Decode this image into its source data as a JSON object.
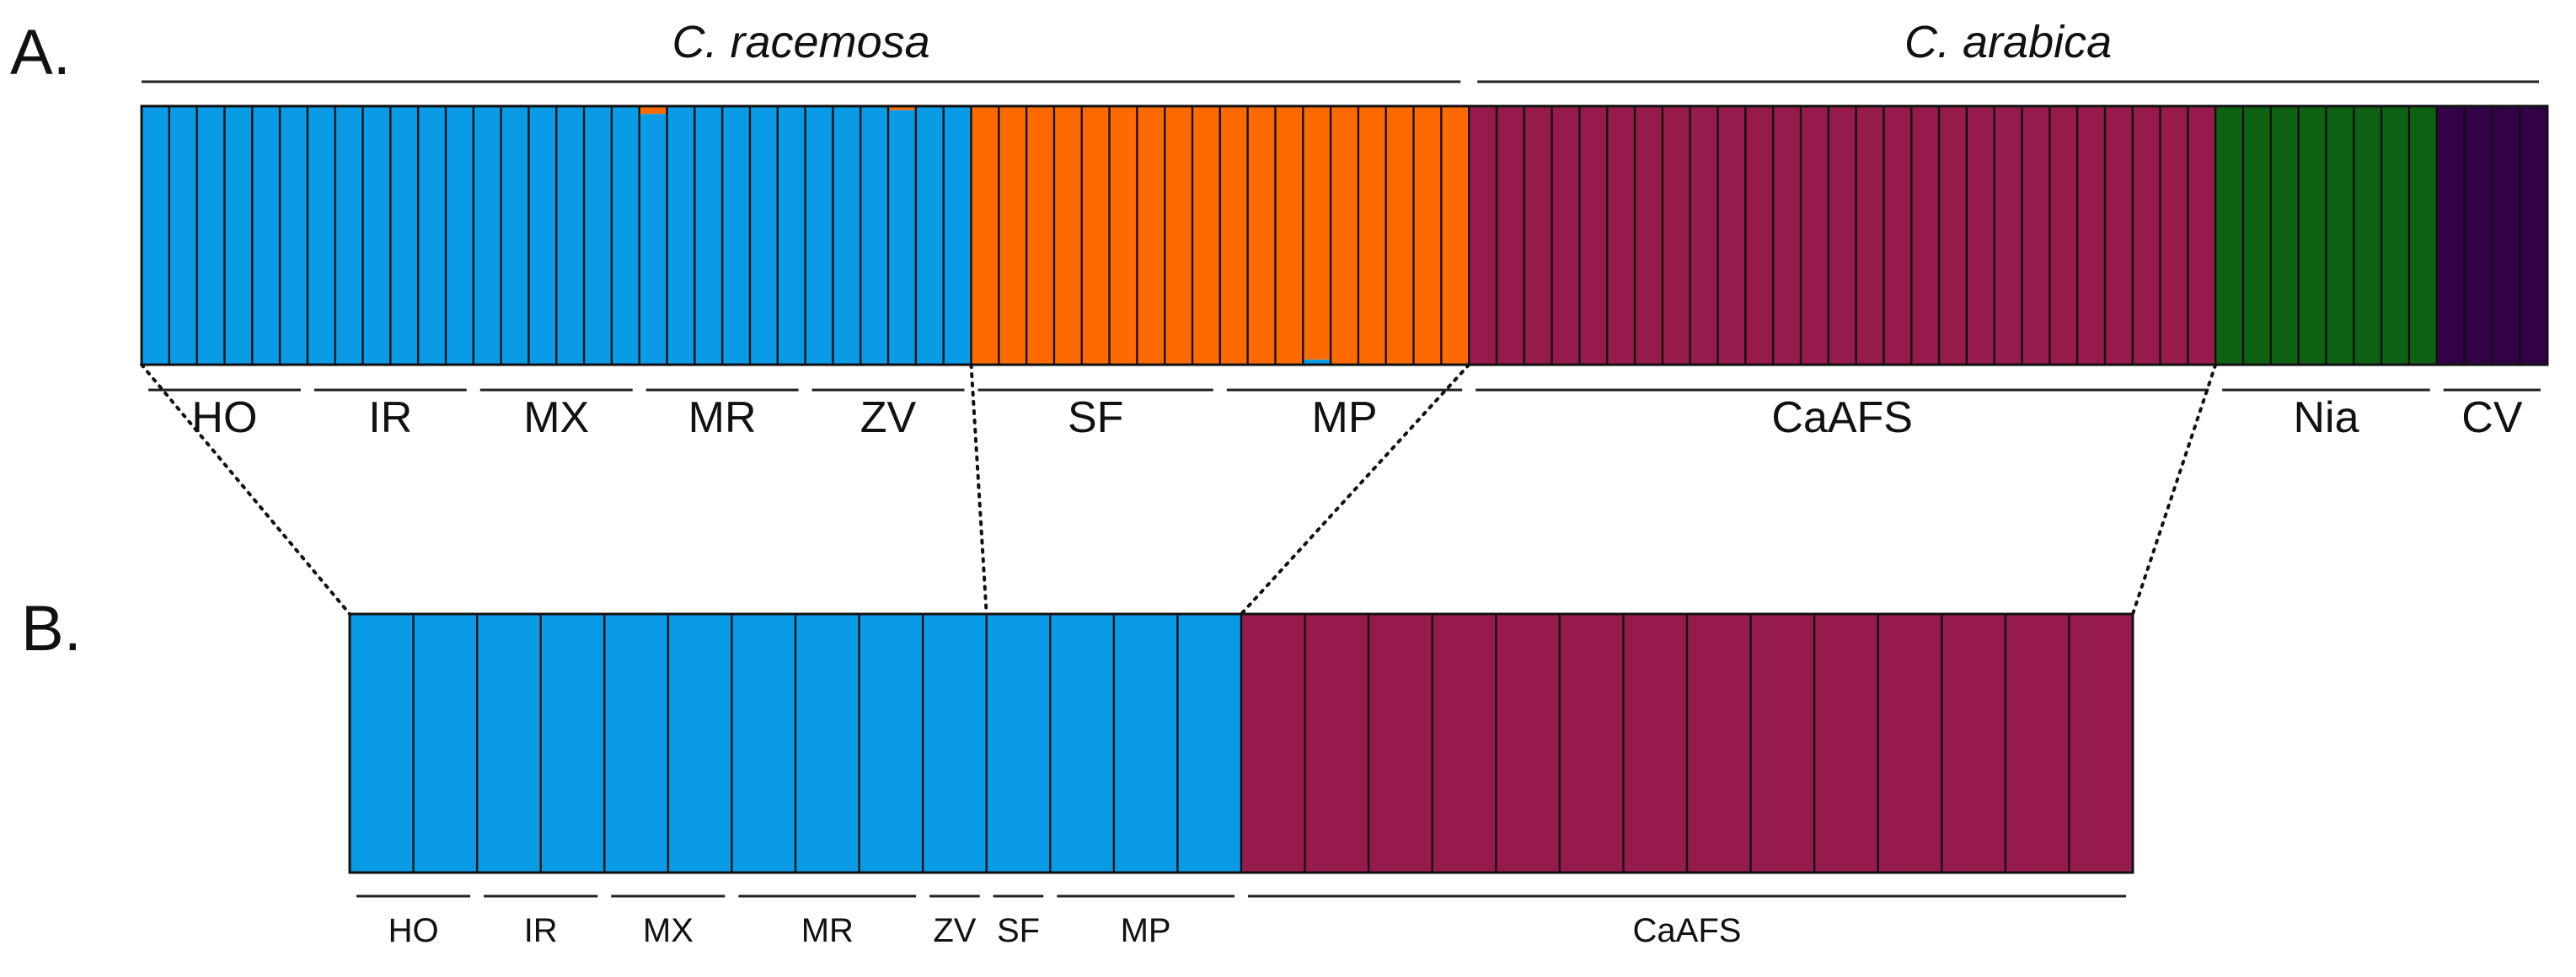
{
  "panels": {
    "a": {
      "letter": "A.",
      "species": [
        {
          "name": "C. racemosa",
          "from_individual": 0,
          "to_individual": 48
        },
        {
          "name": "C. arabica",
          "from_individual": 48,
          "to_individual": 87
        }
      ],
      "populations": [
        {
          "label": "HO",
          "from_individual": 0,
          "to_individual": 6
        },
        {
          "label": "IR",
          "from_individual": 6,
          "to_individual": 12
        },
        {
          "label": "MX",
          "from_individual": 12,
          "to_individual": 18
        },
        {
          "label": "MR",
          "from_individual": 18,
          "to_individual": 24
        },
        {
          "label": "ZV",
          "from_individual": 24,
          "to_individual": 30
        },
        {
          "label": "SF",
          "from_individual": 30,
          "to_individual": 39
        },
        {
          "label": "MP",
          "from_individual": 39,
          "to_individual": 48
        },
        {
          "label": "CaAFS",
          "from_individual": 48,
          "to_individual": 75
        },
        {
          "label": "Nia",
          "from_individual": 75,
          "to_individual": 83
        },
        {
          "label": "CV",
          "from_individual": 83,
          "to_individual": 87
        }
      ]
    },
    "b": {
      "letter": "B.",
      "populations": [
        {
          "label": "HO",
          "from_individual": 0,
          "to_individual": 2
        },
        {
          "label": "IR",
          "from_individual": 2,
          "to_individual": 4
        },
        {
          "label": "MX",
          "from_individual": 4,
          "to_individual": 6
        },
        {
          "label": "MR",
          "from_individual": 6,
          "to_individual": 9
        },
        {
          "label": "ZV",
          "from_individual": 9,
          "to_individual": 10
        },
        {
          "label": "SF",
          "from_individual": 10,
          "to_individual": 11
        },
        {
          "label": "MP",
          "from_individual": 11,
          "to_individual": 14
        },
        {
          "label": "CaAFS",
          "from_individual": 14,
          "to_individual": 28
        }
      ]
    }
  },
  "colors": {
    "cluster_blue": "#0A9BE6",
    "cluster_orange": "#FF6A00",
    "cluster_magenta": "#961A4B",
    "cluster_green": "#0E6112",
    "cluster_purple": "#330146",
    "outline": "#111111"
  },
  "chart_data": [
    {
      "type": "bar",
      "stacked": true,
      "panel": "A",
      "n_individuals": 87,
      "ylim": [
        0,
        1
      ],
      "cluster_colors": [
        "#0A9BE6",
        "#FF6A00",
        "#961A4B",
        "#0E6112",
        "#330146"
      ],
      "groups": [
        {
          "population": "HO",
          "n": 6,
          "q": [
            1,
            0,
            0,
            0,
            0
          ]
        },
        {
          "population": "IR",
          "n": 6,
          "q": [
            1,
            0,
            0,
            0,
            0
          ]
        },
        {
          "population": "MX",
          "n": 6,
          "q": [
            1,
            0,
            0,
            0,
            0
          ]
        },
        {
          "population": "MR",
          "n": 6,
          "q": [
            1,
            0,
            0,
            0,
            0
          ]
        },
        {
          "population": "ZV",
          "n": 6,
          "q": [
            1,
            0,
            0,
            0,
            0
          ]
        },
        {
          "population": "SF",
          "n": 9,
          "q": [
            0,
            1,
            0,
            0,
            0
          ]
        },
        {
          "population": "MP",
          "n": 9,
          "q": [
            0,
            1,
            0,
            0,
            0
          ]
        },
        {
          "population": "CaAFS",
          "n": 27,
          "q": [
            0,
            0,
            1,
            0,
            0
          ]
        },
        {
          "population": "Nia",
          "n": 8,
          "q": [
            0,
            0,
            0,
            1,
            0
          ]
        },
        {
          "population": "CV",
          "n": 4,
          "q": [
            0,
            0,
            0,
            0,
            1
          ]
        }
      ],
      "admixed": [
        {
          "individual": 18,
          "q": [
            0.97,
            0.03,
            0,
            0,
            0
          ]
        },
        {
          "individual": 27,
          "q": [
            0.985,
            0.015,
            0,
            0,
            0
          ]
        },
        {
          "individual": 42,
          "q": [
            0.02,
            0.98,
            0,
            0,
            0
          ]
        }
      ]
    },
    {
      "type": "bar",
      "stacked": true,
      "panel": "B",
      "n_individuals": 28,
      "ylim": [
        0,
        1
      ],
      "cluster_colors": [
        "#0A9BE6",
        "#961A4B"
      ],
      "groups": [
        {
          "population": "HO",
          "n": 2,
          "q": [
            1,
            0
          ]
        },
        {
          "population": "IR",
          "n": 2,
          "q": [
            1,
            0
          ]
        },
        {
          "population": "MX",
          "n": 2,
          "q": [
            1,
            0
          ]
        },
        {
          "population": "MR",
          "n": 3,
          "q": [
            1,
            0
          ]
        },
        {
          "population": "ZV",
          "n": 1,
          "q": [
            1,
            0
          ]
        },
        {
          "population": "SF",
          "n": 1,
          "q": [
            1,
            0
          ]
        },
        {
          "population": "MP",
          "n": 3,
          "q": [
            1,
            0
          ]
        },
        {
          "population": "CaAFS",
          "n": 14,
          "q": [
            0,
            1
          ]
        }
      ],
      "admixed": []
    }
  ]
}
